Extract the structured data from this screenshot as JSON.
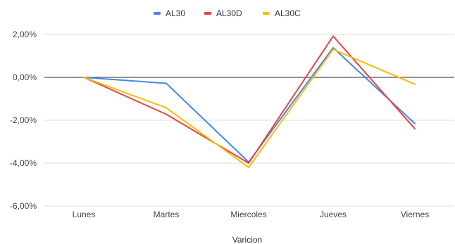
{
  "chart_data": {
    "type": "line",
    "title": "",
    "xlabel": "Varicion",
    "ylabel": "",
    "categories": [
      "Lunes",
      "Martes",
      "Miercoles",
      "Jueves",
      "Viernes"
    ],
    "ylim": [
      -6,
      2.5
    ],
    "yticks": [
      2,
      0,
      -2,
      -4,
      -6
    ],
    "ytick_labels": [
      "2,00%",
      "0,00%",
      "-2,00%",
      "-4,00%",
      "-6,00%"
    ],
    "legend_position": "top-center",
    "grid": true,
    "series": [
      {
        "name": "AL30",
        "color": "#4a86e8",
        "values": [
          0,
          -0.28,
          -3.95,
          1.38,
          -2.15
        ]
      },
      {
        "name": "AL30D",
        "color": "#e84545",
        "values": [
          0,
          -1.72,
          -4.0,
          1.92,
          -2.4
        ]
      },
      {
        "name": "AL30C",
        "color": "#fbbc04",
        "values": [
          0,
          -1.42,
          -4.2,
          1.3,
          -0.32
        ]
      }
    ]
  }
}
